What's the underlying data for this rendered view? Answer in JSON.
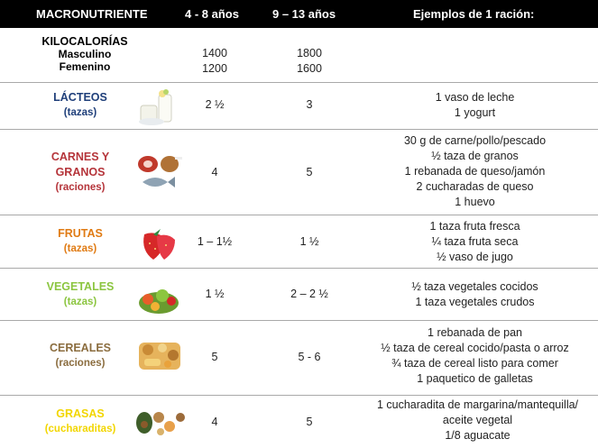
{
  "header": {
    "col0": "MACRONUTRIENTE",
    "col1": "4 - 8 años",
    "col2": "9 – 13 años",
    "col3": "Ejemplos de 1 ración:"
  },
  "kcal": {
    "title": "KILOCALORÍAS",
    "masc_label": "Masculino",
    "fem_label": "Femenino",
    "masc_4_8": "1400",
    "fem_4_8": "1200",
    "masc_9_13": "1800",
    "fem_9_13": "1600"
  },
  "rows": [
    {
      "name": "LÁCTEOS",
      "unit": "(tazas)",
      "color": "#1f3f7a",
      "icon": "dairy-icon",
      "v1": "2 ½",
      "v2": "3",
      "examples": [
        "1 vaso de leche",
        "1 yogurt"
      ]
    },
    {
      "name": "CARNES Y",
      "name2": "GRANOS",
      "unit": "(raciones)",
      "color": "#b5343a",
      "icon": "meat-fish-icon",
      "v1": "4",
      "v2": "5",
      "examples": [
        "30 g de carne/pollo/pescado",
        "½ taza de granos",
        "1 rebanada de queso/jamón",
        "2 cucharadas de queso",
        "1 huevo"
      ]
    },
    {
      "name": "FRUTAS",
      "unit": "(tazas)",
      "color": "#e07b14",
      "icon": "strawberry-icon",
      "v1": "1 – 1½",
      "v2": "1 ½",
      "examples": [
        "1 taza fruta fresca",
        "¼ taza fruta seca",
        "½ vaso de jugo"
      ]
    },
    {
      "name": "VEGETALES",
      "unit": "(tazas)",
      "color": "#8bc53f",
      "icon": "vegetables-icon",
      "v1": "1 ½",
      "v2": "2 – 2 ½",
      "examples": [
        "½ taza vegetales cocidos",
        "1 taza vegetales crudos"
      ]
    },
    {
      "name": "CEREALES",
      "unit": "(raciones)",
      "color": "#8b6d3f",
      "icon": "cereals-icon",
      "v1": "5",
      "v2": "5 - 6",
      "examples": [
        "1 rebanada de pan",
        "½  taza de cereal cocido/pasta o arroz",
        "¾ taza de cereal listo para comer",
        "1 paquetico de galletas"
      ]
    },
    {
      "name": "GRASAS",
      "unit": "(cucharaditas)",
      "color": "#f2d600",
      "icon": "fats-nuts-icon",
      "v1": "4",
      "v2": "5",
      "examples": [
        "1 cucharadita de margarina/mantequilla/",
        "aceite vegetal",
        "1/8 aguacate"
      ]
    }
  ]
}
